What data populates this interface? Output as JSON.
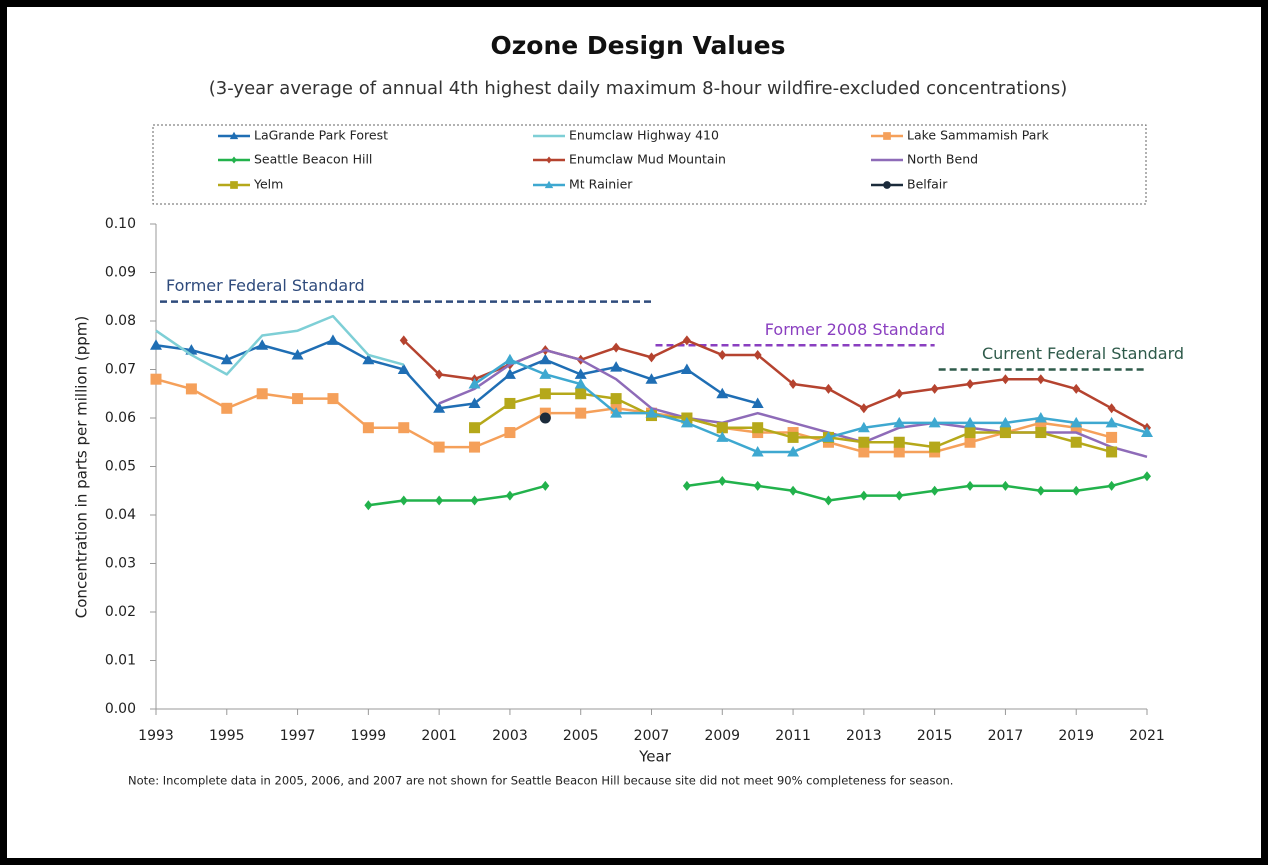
{
  "chart_data": {
    "type": "line",
    "title": "Ozone Design Values",
    "subtitle": "(3-year average of annual 4th highest daily maximum 8-hour wildfire-excluded concentrations)",
    "xlabel": "Year",
    "ylabel": "Concentration in parts per million (ppm)",
    "note": "Note: Incomplete data in 2005, 2006, and 2007 are not shown for Seattle Beacon Hill because site did not meet 90% completeness for season.",
    "x": [
      1993,
      1994,
      1995,
      1996,
      1997,
      1998,
      1999,
      2000,
      2001,
      2002,
      2003,
      2004,
      2005,
      2006,
      2007,
      2008,
      2009,
      2010,
      2011,
      2012,
      2013,
      2014,
      2015,
      2016,
      2017,
      2018,
      2019,
      2020,
      2021
    ],
    "xlim": [
      1993,
      2021
    ],
    "xticks": [
      1993,
      1995,
      1997,
      1999,
      2001,
      2003,
      2005,
      2007,
      2009,
      2011,
      2013,
      2015,
      2017,
      2019,
      2021
    ],
    "ylim": [
      0,
      0.1
    ],
    "yticks": [
      {
        "value": 0,
        "label": "0.00"
      },
      0.01,
      0.02,
      0.03,
      0.04,
      0.05,
      0.06,
      0.07,
      0.08,
      0.09,
      {
        "value": 0.1,
        "label": "0.10"
      }
    ],
    "grid": false,
    "legend": "top",
    "series": [
      {
        "name": "LaGrande Park Forest",
        "color": "#1f6eb4",
        "marker": "triangle",
        "values": [
          0.075,
          0.074,
          0.072,
          0.075,
          0.073,
          0.076,
          0.072,
          0.07,
          0.062,
          0.063,
          0.069,
          0.072,
          0.069,
          0.0705,
          0.068,
          0.07,
          0.065,
          0.063,
          null,
          null,
          null,
          null,
          null,
          null,
          null,
          null,
          null,
          null,
          null
        ]
      },
      {
        "name": "Enumclaw Highway 410",
        "color": "#7ecfd6",
        "marker": null,
        "values": [
          0.078,
          0.073,
          0.069,
          0.077,
          0.078,
          0.081,
          0.073,
          0.071,
          null,
          null,
          null,
          null,
          null,
          null,
          null,
          null,
          null,
          null,
          null,
          null,
          null,
          null,
          null,
          null,
          null,
          null,
          null,
          null,
          null
        ]
      },
      {
        "name": "Lake Sammamish Park",
        "color": "#f5a05a",
        "marker": "square",
        "values": [
          0.068,
          0.066,
          0.062,
          0.065,
          0.064,
          0.064,
          0.058,
          0.058,
          0.054,
          0.054,
          0.057,
          0.061,
          0.061,
          0.062,
          0.061,
          0.06,
          0.058,
          0.057,
          0.057,
          0.055,
          0.053,
          0.053,
          0.053,
          0.055,
          0.057,
          0.059,
          0.058,
          0.056,
          null
        ]
      },
      {
        "name": "Seattle Beacon Hill",
        "color": "#22b24c",
        "marker": "diamond",
        "values": [
          null,
          null,
          null,
          null,
          null,
          null,
          0.042,
          0.043,
          0.043,
          0.043,
          0.044,
          0.046,
          null,
          null,
          null,
          0.046,
          0.047,
          0.046,
          0.045,
          0.043,
          0.044,
          0.044,
          0.045,
          0.046,
          0.046,
          0.045,
          0.045,
          0.046,
          0.048
        ]
      },
      {
        "name": "Enumclaw Mud Mountain",
        "color": "#b5432f",
        "marker": "diamond",
        "values": [
          null,
          null,
          null,
          null,
          null,
          null,
          null,
          0.076,
          0.069,
          0.068,
          0.071,
          0.074,
          0.072,
          0.0745,
          0.0725,
          0.076,
          0.073,
          0.073,
          0.067,
          0.066,
          0.062,
          0.065,
          0.066,
          0.067,
          0.068,
          0.068,
          0.066,
          0.062,
          0.058
        ]
      },
      {
        "name": "North Bend",
        "color": "#8e6bb8",
        "marker": null,
        "values": [
          null,
          null,
          null,
          null,
          null,
          null,
          null,
          null,
          0.063,
          0.066,
          0.071,
          0.074,
          0.072,
          0.068,
          0.062,
          0.06,
          0.059,
          0.061,
          0.059,
          0.057,
          0.055,
          0.058,
          0.059,
          0.058,
          0.057,
          0.057,
          0.057,
          0.054,
          0.052
        ]
      },
      {
        "name": "Yelm",
        "color": "#b5a81a",
        "marker": "square",
        "values": [
          null,
          null,
          null,
          null,
          null,
          null,
          null,
          null,
          null,
          0.058,
          0.063,
          0.065,
          0.065,
          0.064,
          0.0605,
          0.06,
          0.058,
          0.058,
          0.056,
          0.056,
          0.055,
          0.055,
          0.054,
          0.057,
          0.057,
          0.057,
          0.055,
          0.053,
          null
        ]
      },
      {
        "name": "Mt Rainier",
        "color": "#3ea8d0",
        "marker": "triangle",
        "values": [
          null,
          null,
          null,
          null,
          null,
          null,
          null,
          null,
          null,
          0.067,
          0.072,
          0.069,
          0.067,
          0.061,
          0.061,
          0.059,
          0.056,
          0.053,
          0.053,
          0.056,
          0.058,
          0.059,
          0.059,
          0.059,
          0.059,
          0.06,
          0.059,
          0.059,
          0.057
        ]
      },
      {
        "name": "Belfair",
        "color": "#1b2b3b",
        "marker": "circle",
        "values": [
          null,
          null,
          null,
          null,
          null,
          null,
          null,
          null,
          null,
          null,
          null,
          0.06,
          null,
          null,
          null,
          null,
          null,
          null,
          null,
          null,
          null,
          null,
          null,
          null,
          null,
          null,
          null,
          null,
          null
        ]
      }
    ],
    "annotations": [
      {
        "text": "Former Federal Standard",
        "value": 0.084,
        "x": [
          1993,
          2007
        ],
        "color": "#2f4b7c"
      },
      {
        "text": "Former 2008 Standard",
        "value": 0.075,
        "x": [
          2007,
          2015
        ],
        "color": "#8a3fc0"
      },
      {
        "text": "Current Federal Standard",
        "value": 0.07,
        "x": [
          2015,
          2021
        ],
        "color": "#2e5a4a"
      }
    ]
  }
}
